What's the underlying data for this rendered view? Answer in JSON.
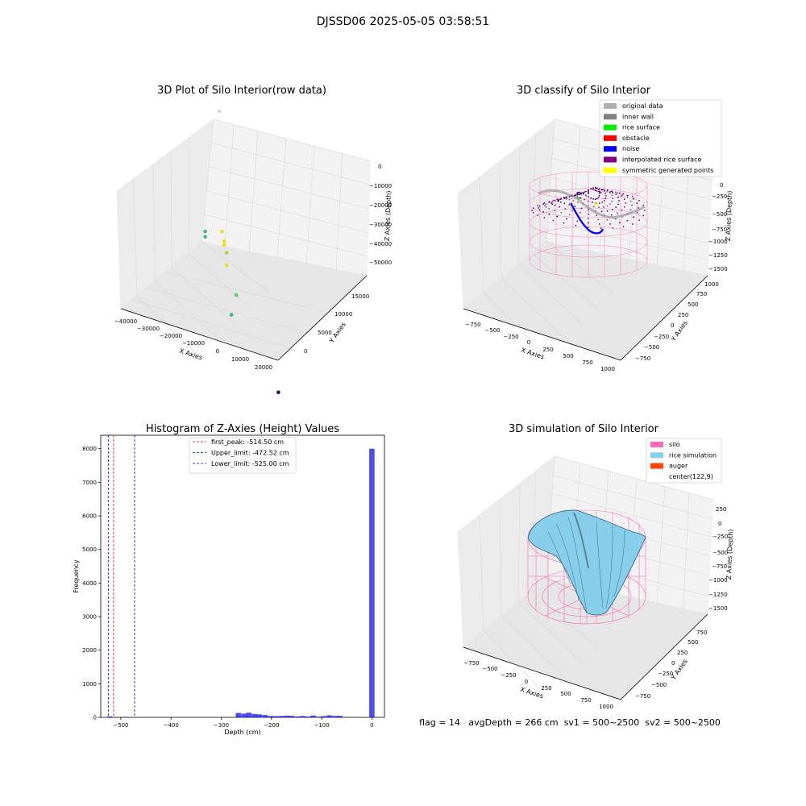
{
  "figure": {
    "suptitle": "DJSSD06 2025-05-05 03:58:51",
    "footer": "flag = 14   avgDepth = 266 cm  sv1 = 500~2500  sv2 = 500~2500"
  },
  "chart_data": [
    {
      "type": "scatter",
      "is_3d": true,
      "title": "3D Plot of Silo Interior(row data)",
      "xlabel": "X Axies",
      "ylabel": "Y Axies",
      "zlabel": "Z Axies (Depth)",
      "xticks": [
        "−40000",
        "−30000",
        "−20000",
        "−10000",
        "0",
        "10000",
        "20000"
      ],
      "yticks": [
        "0",
        "5000",
        "10000",
        "15000"
      ],
      "zticks": [
        "0",
        "−10000",
        "−20000",
        "−30000",
        "−40000",
        "−50000"
      ],
      "points": [
        {
          "x": -32000,
          "y": 15000,
          "z": -3000,
          "color": "#cfd6d6"
        },
        {
          "x": -16000,
          "y": 4500,
          "z": -19000,
          "color": "#3fb58a"
        },
        {
          "x": -16000,
          "y": 4500,
          "z": -20500,
          "color": "#3fb58a"
        },
        {
          "x": -9000,
          "y": 4500,
          "z": -17500,
          "color": "#e4e419"
        },
        {
          "x": -8000,
          "y": 4500,
          "z": -20000,
          "color": "#e4e419"
        },
        {
          "x": -8000,
          "y": 4500,
          "z": -21000,
          "color": "#e4e419"
        },
        {
          "x": -7000,
          "y": 4500,
          "z": -23000,
          "color": "#a2d93a"
        },
        {
          "x": -7000,
          "y": 4500,
          "z": -26500,
          "color": "#e4e419"
        },
        {
          "x": -3000,
          "y": 4500,
          "z": -34000,
          "color": "#5ec962"
        },
        {
          "x": -5000,
          "y": 4500,
          "z": -40000,
          "color": "#35b779"
        },
        {
          "x": 21000,
          "y": 1500,
          "z": -52000,
          "color": "#440154"
        }
      ]
    },
    {
      "type": "scatter",
      "is_3d": true,
      "title": "3D classify of Silo Interior",
      "xlabel": "X Axies",
      "ylabel": "Y Axies",
      "zlabel": "Z Axies (Depth)",
      "xticks": [
        "−750",
        "−500",
        "−250",
        "0",
        "250",
        "500",
        "750",
        "1000"
      ],
      "yticks": [
        "−750",
        "−500",
        "−250",
        "0",
        "250",
        "500",
        "750",
        "1000"
      ],
      "zticks": [
        "0",
        "−250",
        "−500",
        "−750",
        "−1000",
        "−1250",
        "−1500"
      ],
      "legend": [
        {
          "label": "original data",
          "color": "#b0b0b0"
        },
        {
          "label": "inner wall",
          "color": "#808080"
        },
        {
          "label": "rice surface",
          "color": "#00ee00"
        },
        {
          "label": "obstacle",
          "color": "#ff0000"
        },
        {
          "label": "noise",
          "color": "#0000ff"
        },
        {
          "label": "interpolated rice surface",
          "color": "#800080"
        },
        {
          "label": "symmetric generated points",
          "color": "#ffff00"
        }
      ],
      "legend_position": "top-right"
    },
    {
      "type": "histogram",
      "title": "Histogram of Z-Axies (Height) Values",
      "xlabel": "Depth (cm)",
      "ylabel": "Frequency",
      "xlim": [
        -540,
        25
      ],
      "ylim": [
        0,
        8400
      ],
      "xticks": [
        -500,
        -400,
        -300,
        -200,
        -100,
        0
      ],
      "yticks": [
        0,
        1000,
        2000,
        3000,
        4000,
        5000,
        6000,
        7000,
        8000
      ],
      "bars": [
        {
          "x": -522,
          "value": 30
        },
        {
          "x": -511,
          "value": 10
        },
        {
          "x": -490,
          "value": 15
        },
        {
          "x": -266,
          "value": 130
        },
        {
          "x": -255,
          "value": 110
        },
        {
          "x": -245,
          "value": 140
        },
        {
          "x": -234,
          "value": 100
        },
        {
          "x": -224,
          "value": 90
        },
        {
          "x": -213,
          "value": 70
        },
        {
          "x": -202,
          "value": 40
        },
        {
          "x": -192,
          "value": 35
        },
        {
          "x": -181,
          "value": 40
        },
        {
          "x": -170,
          "value": 50
        },
        {
          "x": -160,
          "value": 45
        },
        {
          "x": -149,
          "value": 30
        },
        {
          "x": -138,
          "value": 40
        },
        {
          "x": -128,
          "value": 25
        },
        {
          "x": -117,
          "value": 55
        },
        {
          "x": -106,
          "value": 20
        },
        {
          "x": -96,
          "value": 35
        },
        {
          "x": -85,
          "value": 60
        },
        {
          "x": -74,
          "value": 40
        },
        {
          "x": -64,
          "value": 45
        },
        {
          "x": -53,
          "value": 5
        },
        {
          "x": 0,
          "value": 8000
        }
      ],
      "bar_width": 10.6,
      "bar_color": "#0000ee",
      "vlines": [
        {
          "label": "first_peak: -514.50 cm",
          "x": -514.5,
          "color": "#ff0000"
        },
        {
          "label": "Upper_limit: -472.52 cm",
          "x": -472.52,
          "color": "#0000aa"
        },
        {
          "label": "Lower_limit: -525.00 cm",
          "x": -525.0,
          "color": "#0000aa"
        }
      ],
      "legend_position": "top-center"
    },
    {
      "type": "surface",
      "is_3d": true,
      "title": "3D simulation of Silo Interior",
      "xlabel": "X Axies",
      "ylabel": "Y Axies",
      "zlabel": "Z Axies (Depth)",
      "xticks": [
        "−750",
        "−500",
        "−250",
        "0",
        "250",
        "500",
        "750",
        "1000"
      ],
      "yticks": [
        "−750",
        "−500",
        "−250",
        "0",
        "250",
        "500",
        "750"
      ],
      "zticks": [
        "250",
        "0",
        "−250",
        "−500",
        "−750",
        "−1000",
        "−1250",
        "−1500"
      ],
      "legend": [
        {
          "label": "silo",
          "color": "#ff69b4"
        },
        {
          "label": "rice simulation",
          "color": "#87ceeb"
        },
        {
          "label": "auger",
          "color": "#ff4500"
        },
        {
          "label": "center(122,9)",
          "color": "#ffffff"
        }
      ],
      "legend_position": "top-right"
    }
  ]
}
